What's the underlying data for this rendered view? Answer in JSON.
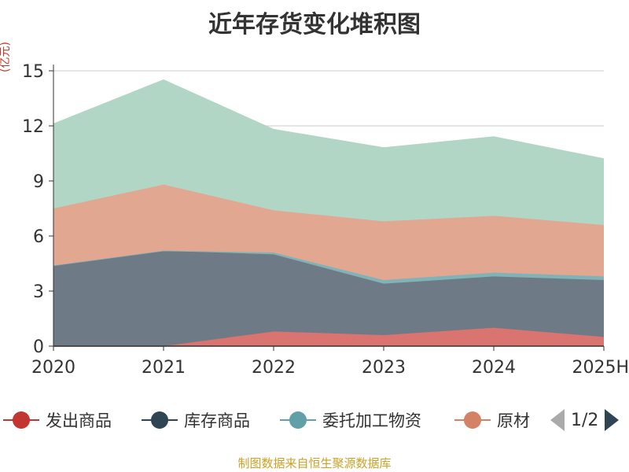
{
  "title": "近年存货变化堆积图",
  "unit_label": "(亿元)",
  "source": "制图数据来自恒生聚源数据库",
  "legend": {
    "items": [
      {
        "label": "发出商品",
        "color": "#c23531"
      },
      {
        "label": "库存商品",
        "color": "#2f4554"
      },
      {
        "label": "委托加工物资",
        "color": "#61a0a8"
      },
      {
        "label": "原材",
        "color": "#d48265"
      }
    ],
    "page_text": "1/2"
  },
  "chart_data": {
    "type": "area",
    "stacked": true,
    "categories": [
      "2020",
      "2021",
      "2022",
      "2023",
      "2024",
      "2025H"
    ],
    "series": [
      {
        "name": "发出商品",
        "color": "#d97471",
        "values": [
          0.0,
          0.0,
          0.8,
          0.6,
          1.0,
          0.5
        ]
      },
      {
        "name": "库存商品",
        "color": "#6e7a85",
        "values": [
          4.4,
          5.2,
          4.2,
          2.8,
          2.8,
          3.1
        ]
      },
      {
        "name": "委托加工物资",
        "color": "#7fb3b8",
        "values": [
          0.0,
          0.0,
          0.1,
          0.2,
          0.2,
          0.2
        ]
      },
      {
        "name": "原材",
        "color": "#e1a790",
        "values": [
          3.1,
          3.6,
          2.3,
          3.2,
          3.1,
          2.8
        ]
      },
      {
        "name": "",
        "color": "#b2d6c6",
        "values": [
          4.6,
          5.7,
          4.4,
          4.0,
          4.3,
          3.6
        ]
      }
    ],
    "ylim": [
      0,
      15
    ],
    "yticks": [
      "0",
      "3",
      "6",
      "9",
      "12",
      "15"
    ],
    "grid": true
  }
}
